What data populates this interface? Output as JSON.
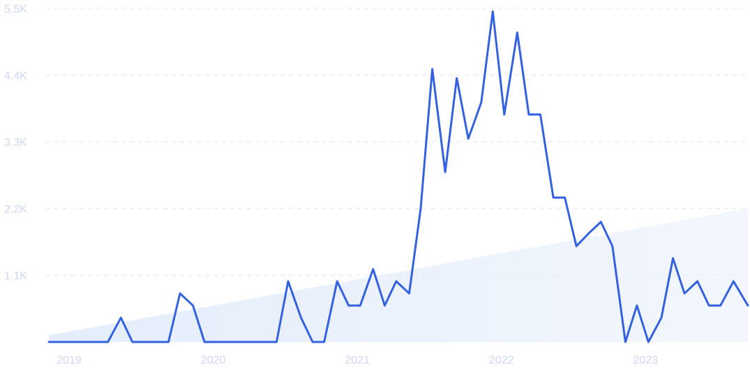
{
  "chart_data": {
    "type": "line",
    "title": "",
    "xlabel": "",
    "ylabel": "",
    "ylim": [
      0,
      5500
    ],
    "yticks": [
      "1.1K",
      "2.2K",
      "3.3K",
      "4.4K",
      "5.5K"
    ],
    "ytick_values": [
      1100,
      2200,
      3300,
      4400,
      5500
    ],
    "xticks": [
      "2019",
      "2020",
      "2021",
      "2022",
      "2023"
    ],
    "xtick_values": [
      2019,
      2020,
      2021,
      2022,
      2023
    ],
    "xlim": [
      2018.98,
      2023.83
    ],
    "grid": true,
    "line_color": "#3361e0",
    "trend_fill_color": "#e4edfb",
    "trend": {
      "x": [
        2018.98,
        2023.83
      ],
      "y": [
        110,
        2200
      ]
    },
    "series": [
      {
        "x": [
          2018.98,
          2019.06,
          2019.14,
          2019.23,
          2019.31,
          2019.39,
          2019.48,
          2019.56,
          2019.64,
          2019.73,
          2019.81,
          2019.89,
          2019.98,
          2020.06,
          2020.14,
          2020.23,
          2020.31,
          2020.39,
          2020.48,
          2020.56,
          2020.64,
          2020.73,
          2020.81,
          2020.89,
          2020.98,
          2021.06,
          2021.14,
          2021.23,
          2021.31,
          2021.39,
          2021.48,
          2021.56,
          2021.64,
          2021.73,
          2021.81,
          2021.89,
          2021.98,
          2022.06,
          2022.14,
          2022.23,
          2022.31,
          2022.39,
          2022.48,
          2022.56,
          2022.64,
          2022.73,
          2022.81,
          2022.89,
          2022.98,
          2023.06,
          2023.14,
          2023.23,
          2023.31,
          2023.39,
          2023.48,
          2023.56,
          2023.64,
          2023.73,
          2023.83
        ],
        "values": [
          0,
          0,
          0,
          0,
          0,
          0,
          400,
          0,
          0,
          0,
          0,
          800,
          600,
          0,
          0,
          0,
          0,
          0,
          0,
          0,
          1000,
          400,
          0,
          0,
          1000,
          600,
          600,
          1200,
          600,
          1000,
          800,
          2200,
          4500,
          2800,
          4350,
          3350,
          3950,
          5450,
          3750,
          5100,
          3750,
          3750,
          2380,
          2380,
          1580,
          1800,
          1980,
          1580,
          0,
          600,
          0,
          400,
          1380,
          800,
          1000,
          600,
          600,
          1000,
          600
        ]
      }
    ]
  }
}
